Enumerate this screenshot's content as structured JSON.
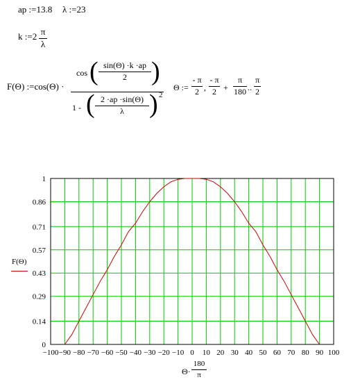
{
  "worksheet": {
    "def_ap": "ap :=13.8",
    "def_lambda": "λ :=23",
    "k_lhs": "k :=2",
    "k_num": "π",
    "k_den": "λ",
    "F_lhs": "F(Θ) :=cos(Θ) ·",
    "F_cos": "cos",
    "F_inner_num": "sin(Θ) ·k ·ap",
    "F_inner_den": "2",
    "F_one_minus": "1 -",
    "F_den_num": "2 ·ap ·sin(Θ)",
    "F_den_den": "λ",
    "F_power": "2",
    "theta_lhs": "Θ :=",
    "theta_a_num": "- π",
    "theta_a_den": "2",
    "theta_sep1": ",",
    "theta_b_num": "- π",
    "theta_b_den": "2",
    "theta_plus": "+",
    "theta_c_num": "π",
    "theta_c_den": "180",
    "theta_range": "..",
    "theta_d_num": "π",
    "theta_d_den": "2"
  },
  "chart_data": {
    "type": "line",
    "ylabel": "F(Θ)",
    "xlabel_prefix": "Θ·",
    "xlabel_num": "180",
    "xlabel_den": "π",
    "xlim": [
      -100,
      100
    ],
    "ylim": [
      0,
      1
    ],
    "x_ticks": [
      -100,
      -90,
      -80,
      -70,
      -60,
      -50,
      -40,
      -30,
      -20,
      -10,
      0,
      10,
      20,
      30,
      40,
      50,
      60,
      70,
      80,
      90,
      100
    ],
    "x_tick_labels": [
      "−100",
      "−90",
      "−80",
      "−70",
      "−60",
      "−50",
      "−40",
      "−30",
      "−20",
      "−10",
      "0",
      "10",
      "20",
      "30",
      "40",
      "50",
      "60",
      "70",
      "80",
      "90",
      "100"
    ],
    "y_tick_labels": [
      {
        "value": 1,
        "label": "1"
      },
      {
        "value": 0.86,
        "label": "0.86"
      },
      {
        "value": 0.71,
        "label": "0.71"
      },
      {
        "value": 0.57,
        "label": "0.57"
      },
      {
        "value": 0.43,
        "label": "0.43"
      },
      {
        "value": 0.29,
        "label": "0.29"
      },
      {
        "value": 0.14,
        "label": "0.14"
      },
      {
        "value": 0,
        "label": "0"
      }
    ],
    "grid": true,
    "grid_color": "#00cc00",
    "line_color": "#cc0000",
    "series": [
      {
        "x": [
          -90,
          -85,
          -80,
          -75,
          -70,
          -65,
          -60,
          -55,
          -50,
          -45,
          -40,
          -35,
          -30,
          -25,
          -20,
          -15,
          -10,
          -5,
          0,
          5,
          10,
          15,
          20,
          25,
          30,
          35,
          40,
          45,
          50,
          55,
          60,
          65,
          70,
          75,
          80,
          85,
          90
        ],
        "values": [
          0,
          0.06,
          0.14,
          0.22,
          0.3,
          0.38,
          0.45,
          0.53,
          0.6,
          0.68,
          0.73,
          0.8,
          0.86,
          0.91,
          0.95,
          0.98,
          0.995,
          1.0,
          1.0,
          1.0,
          0.995,
          0.98,
          0.95,
          0.91,
          0.86,
          0.8,
          0.73,
          0.68,
          0.6,
          0.53,
          0.45,
          0.38,
          0.3,
          0.22,
          0.14,
          0.06,
          0
        ]
      }
    ]
  }
}
